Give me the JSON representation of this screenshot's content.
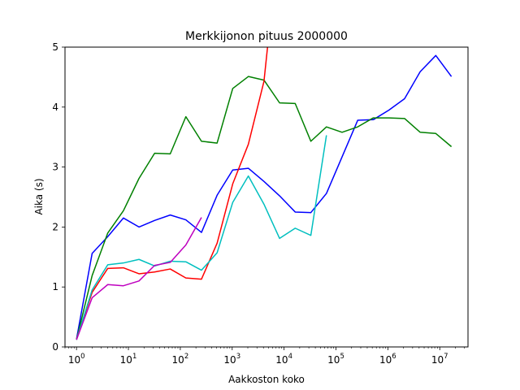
{
  "chart_data": {
    "type": "line",
    "title": "Merkkijonon pituus 2000000",
    "xlabel": "Aakkoston koko",
    "ylabel": "Aika (s)",
    "xscale": "log",
    "xlim": [
      0.6,
      35000000
    ],
    "ylim": [
      0,
      5
    ],
    "grid": false,
    "legend": "none",
    "x_ticks": [
      {
        "value": 1,
        "base": "10",
        "exp": "0"
      },
      {
        "value": 10,
        "base": "10",
        "exp": "1"
      },
      {
        "value": 100,
        "base": "10",
        "exp": "2"
      },
      {
        "value": 1000,
        "base": "10",
        "exp": "3"
      },
      {
        "value": 10000,
        "base": "10",
        "exp": "4"
      },
      {
        "value": 100000,
        "base": "10",
        "exp": "5"
      },
      {
        "value": 1000000,
        "base": "10",
        "exp": "6"
      },
      {
        "value": 10000000,
        "base": "10",
        "exp": "7"
      }
    ],
    "y_ticks": [
      {
        "value": 0,
        "label": "0"
      },
      {
        "value": 1,
        "label": "1"
      },
      {
        "value": 2,
        "label": "2"
      },
      {
        "value": 3,
        "label": "3"
      },
      {
        "value": 4,
        "label": "4"
      },
      {
        "value": 5,
        "label": "5"
      }
    ],
    "series": [
      {
        "color": "#0000ff",
        "x": [
          1,
          2,
          4,
          8,
          16,
          32,
          64,
          128,
          256,
          512,
          1024,
          2048,
          4096,
          8192,
          16384,
          32768,
          65536,
          131072,
          262144,
          524288,
          1048576,
          2097152,
          4194304,
          8388608,
          16777216
        ],
        "y": [
          0.13,
          1.56,
          1.84,
          2.15,
          2.0,
          2.11,
          2.2,
          2.12,
          1.91,
          2.53,
          2.95,
          2.98,
          2.76,
          2.52,
          2.25,
          2.24,
          2.56,
          3.17,
          3.78,
          3.79,
          3.95,
          4.14,
          4.59,
          4.86,
          4.51
        ]
      },
      {
        "color": "#008000",
        "x": [
          1,
          2,
          4,
          8,
          16,
          32,
          64,
          128,
          256,
          512,
          1024,
          2048,
          4096,
          8192,
          16384,
          32768,
          65536,
          131072,
          262144,
          524288,
          1048576,
          2097152,
          4194304,
          8388608,
          16777216
        ],
        "y": [
          0.12,
          1.19,
          1.9,
          2.27,
          2.81,
          3.23,
          3.22,
          3.84,
          3.43,
          3.4,
          4.31,
          4.51,
          4.45,
          4.07,
          4.06,
          3.43,
          3.67,
          3.58,
          3.67,
          3.82,
          3.82,
          3.81,
          3.58,
          3.56,
          3.34
        ]
      },
      {
        "color": "#ff0000",
        "x": [
          1,
          2,
          4,
          8,
          16,
          32,
          64,
          128,
          256,
          512,
          1024,
          2048,
          4096,
          4800
        ],
        "y": [
          0.13,
          0.91,
          1.31,
          1.32,
          1.22,
          1.25,
          1.3,
          1.15,
          1.13,
          1.73,
          2.72,
          3.38,
          4.43,
          5.0
        ]
      },
      {
        "color": "#00bfbf",
        "x": [
          1,
          2,
          4,
          8,
          16,
          32,
          64,
          128,
          256,
          512,
          1024,
          2048,
          4096,
          8192,
          16384,
          32768,
          65536
        ],
        "y": [
          0.12,
          0.95,
          1.37,
          1.4,
          1.46,
          1.35,
          1.43,
          1.42,
          1.28,
          1.57,
          2.41,
          2.85,
          2.38,
          1.81,
          1.98,
          1.86,
          3.53
        ]
      },
      {
        "color": "#bf00bf",
        "x": [
          1,
          2,
          4,
          8,
          16,
          32,
          64,
          128,
          256
        ],
        "y": [
          0.12,
          0.82,
          1.04,
          1.02,
          1.1,
          1.36,
          1.41,
          1.7,
          2.16
        ]
      }
    ]
  }
}
